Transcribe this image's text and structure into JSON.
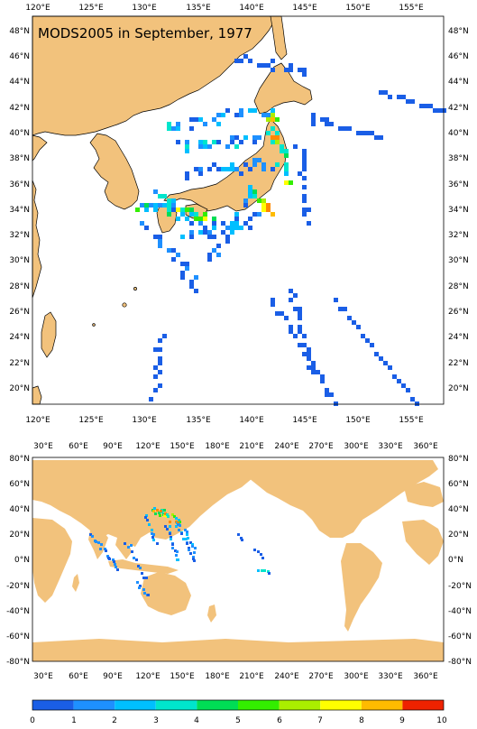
{
  "top_map": {
    "title": "MODS2005 in September, 1977",
    "lon_labels": [
      "120°E",
      "125°E",
      "130°E",
      "135°E",
      "140°E",
      "145°E",
      "150°E",
      "155°E"
    ],
    "lat_labels": [
      "20°N",
      "22°N",
      "24°N",
      "26°N",
      "28°N",
      "30°N",
      "32°N",
      "34°N",
      "36°N",
      "38°N",
      "40°N",
      "42°N",
      "44°N",
      "46°N",
      "48°N"
    ],
    "lon_range": [
      119,
      157.5
    ],
    "lat_range": [
      18.7,
      49.3
    ]
  },
  "bottom_map": {
    "lon_labels": [
      "30°E",
      "60°E",
      "90°E",
      "120°E",
      "150°E",
      "180°E",
      "210°E",
      "240°E",
      "270°E",
      "300°E",
      "330°E",
      "360°E"
    ],
    "lat_labels": [
      "-80°N",
      "-60°N",
      "-40°N",
      "-20°N",
      "0°N",
      "20°N",
      "40°N",
      "60°N",
      "80°N"
    ],
    "lon_range": [
      20,
      375
    ],
    "lat_range": [
      -80,
      80
    ]
  },
  "colorbar": {
    "labels": [
      "0",
      "1",
      "2",
      "3",
      "4",
      "5",
      "6",
      "7",
      "8",
      "9",
      "10"
    ],
    "colors": [
      "#1a5ee6",
      "#1e90ff",
      "#00bfff",
      "#00e5cc",
      "#00dd55",
      "#33ee00",
      "#aaee00",
      "#ffff00",
      "#ffbb00",
      "#ff8800",
      "#ee2200"
    ]
  },
  "colors": {
    "land": "#f2c27c",
    "ocean": "#ffffff"
  }
}
